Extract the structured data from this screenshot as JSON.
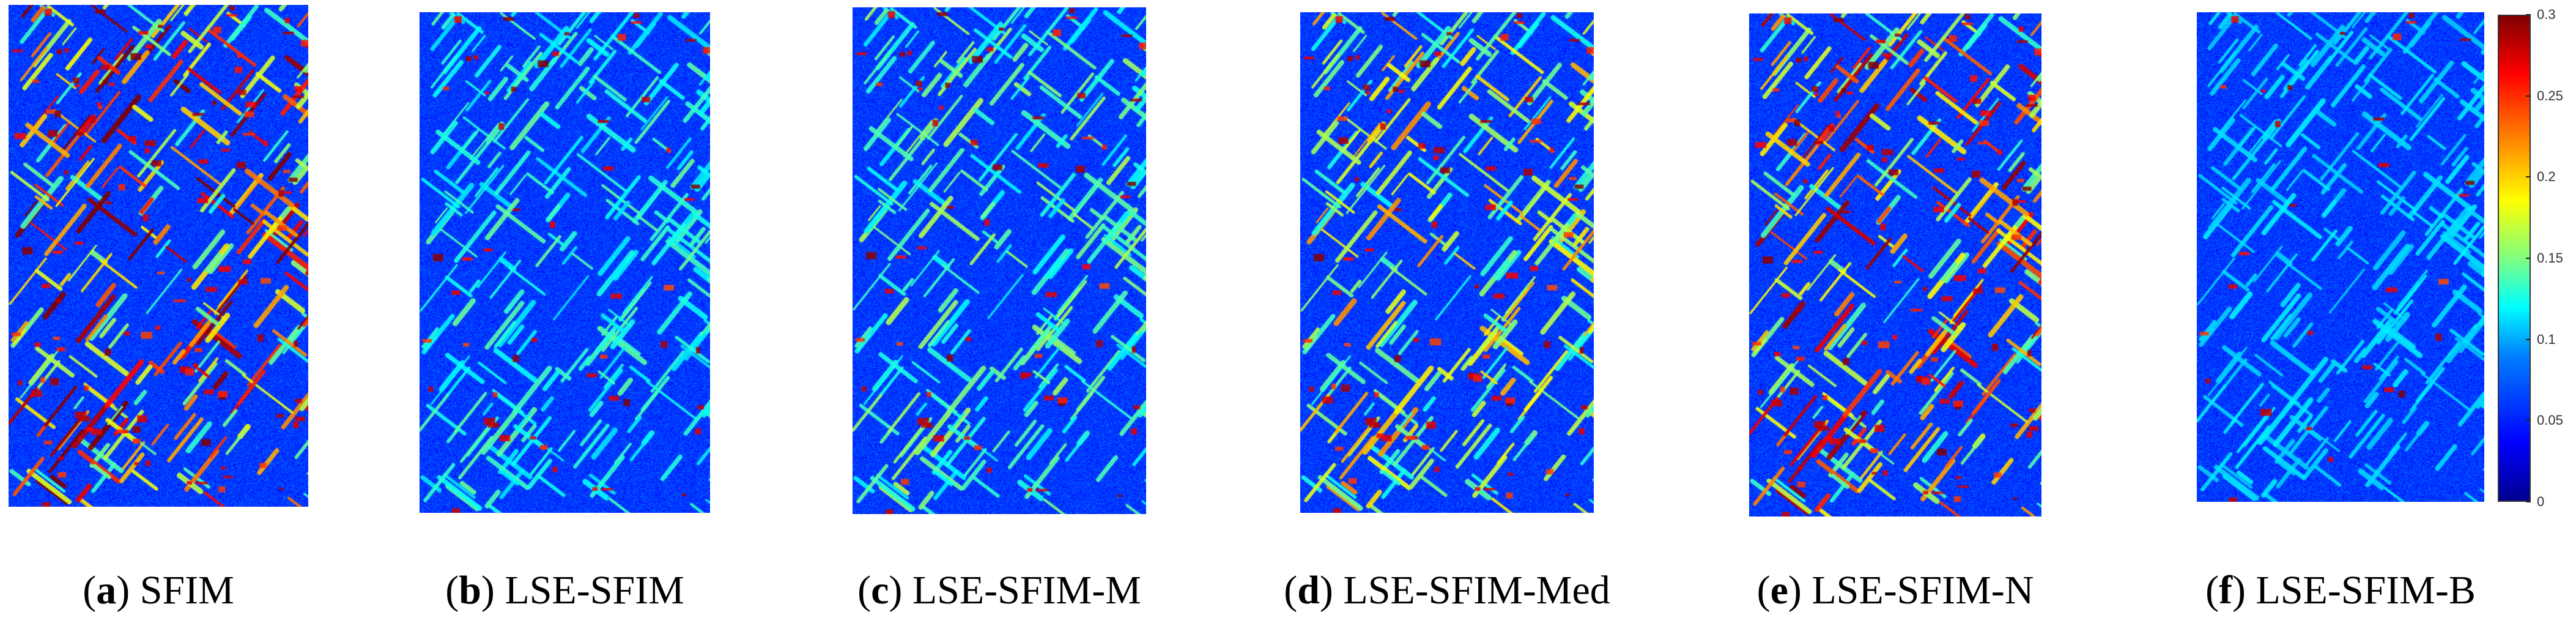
{
  "panels": [
    {
      "letter": "a",
      "title": "SFIM",
      "intensity": 1.0
    },
    {
      "letter": "b",
      "title": "LSE-SFIM",
      "intensity": 0.45
    },
    {
      "letter": "c",
      "title": "LSE-SFIM-M",
      "intensity": 0.55
    },
    {
      "letter": "d",
      "title": "LSE-SFIM-Med",
      "intensity": 0.75
    },
    {
      "letter": "e",
      "title": "LSE-SFIM-N",
      "intensity": 0.95
    },
    {
      "letter": "f",
      "title": "LSE-SFIM-B",
      "intensity": 0.25
    }
  ],
  "colorbar": {
    "ticks": [
      "0.3",
      "0.25",
      "0.2",
      "0.15",
      "0.1",
      "0.05",
      "0"
    ],
    "colormap": [
      "#00008f",
      "#0000ff",
      "#00ffff",
      "#ffff00",
      "#ff0000",
      "#800000"
    ]
  }
}
